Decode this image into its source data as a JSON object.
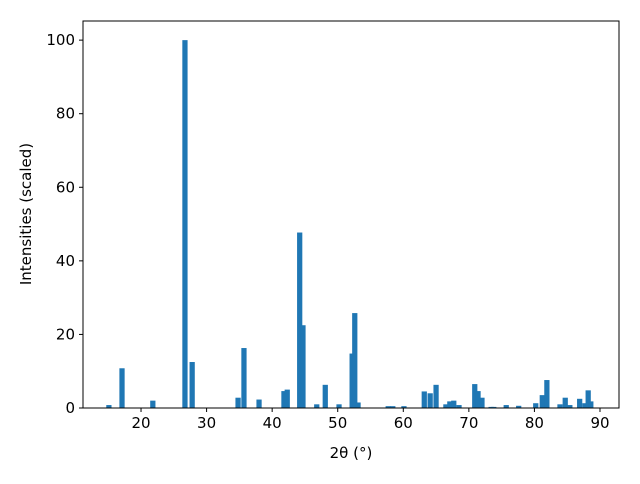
{
  "chart_data": {
    "type": "bar",
    "xlabel": "2θ (°)",
    "ylabel": "Intensities (scaled)",
    "x": [
      15.1,
      17.1,
      21.8,
      26.7,
      27.8,
      34.8,
      35.7,
      38.0,
      41.8,
      42.3,
      44.2,
      44.7,
      46.8,
      48.1,
      50.2,
      52.2,
      52.6,
      53.1,
      57.7,
      58.4,
      60.1,
      63.2,
      64.1,
      65.0,
      66.5,
      67.1,
      67.7,
      68.5,
      70.9,
      71.4,
      72.0,
      73.4,
      73.8,
      75.7,
      77.6,
      80.2,
      81.2,
      81.9,
      83.9,
      84.7,
      85.4,
      86.9,
      87.7,
      88.2,
      88.6
    ],
    "values": [
      0.8,
      10.8,
      2,
      100,
      12.5,
      2.8,
      16.3,
      2.3,
      4.6,
      5,
      47.7,
      22.5,
      1,
      6.3,
      1,
      14.8,
      25.8,
      1.5,
      0.5,
      0.5,
      0.5,
      4.5,
      4,
      6.3,
      1,
      1.8,
      2,
      0.8,
      6.5,
      4.6,
      2.8,
      0.3,
      0.3,
      0.8,
      0.6,
      1.3,
      3.5,
      7.6,
      1,
      2.8,
      0.8,
      2.5,
      1.3,
      4.8,
      1.8
    ],
    "bar_width": 0.8,
    "color": "#1f77b4",
    "xlim": [
      11.15,
      92.9
    ],
    "xticks": [
      20,
      30,
      40,
      50,
      60,
      70,
      80,
      90
    ],
    "ylim": [
      0,
      105.2
    ],
    "yticks": [
      0,
      20,
      40,
      60,
      80,
      100
    ]
  }
}
